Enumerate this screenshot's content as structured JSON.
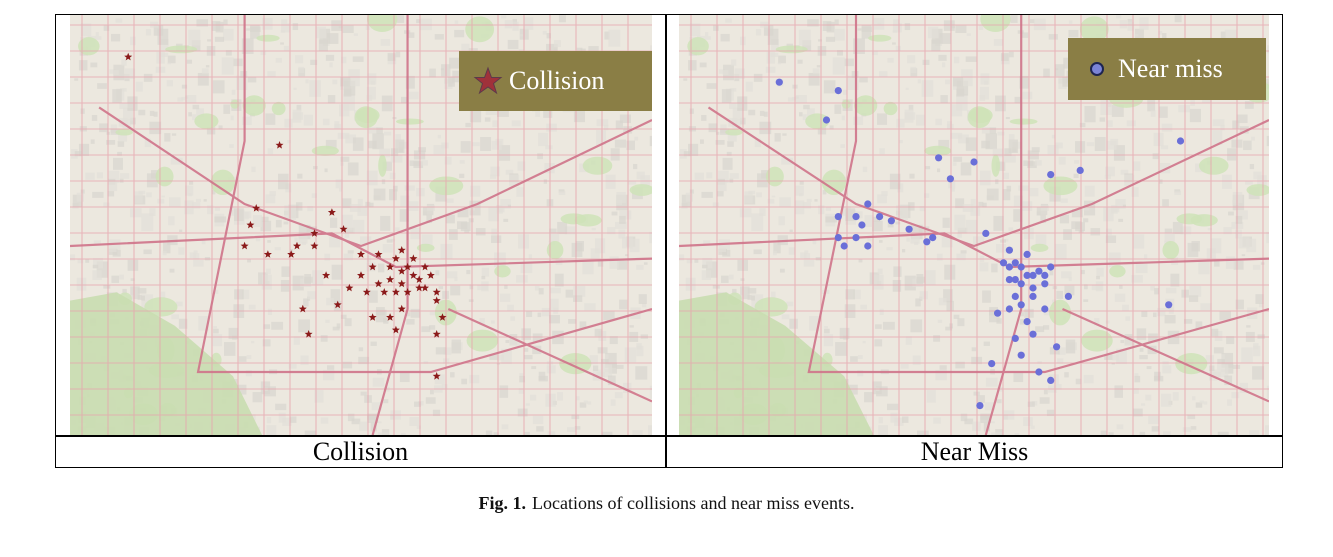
{
  "figure": {
    "caption_label": "Fig. 1.",
    "caption_text": "Locations of collisions and near miss events."
  },
  "panels": {
    "left": {
      "caption": "Collision",
      "legend_label": "Collision",
      "marker_icon": "star-icon",
      "marker_color": "#8b1a1a"
    },
    "right": {
      "caption": "Near Miss",
      "legend_label": "Near miss",
      "marker_icon": "circle-icon",
      "marker_color": "#6a6fd8"
    }
  },
  "colors": {
    "legend_bg": "#8a7e45",
    "map_bg": "#ece8df",
    "park": "#cfe3b8",
    "road": "#e7a4ad"
  }
}
